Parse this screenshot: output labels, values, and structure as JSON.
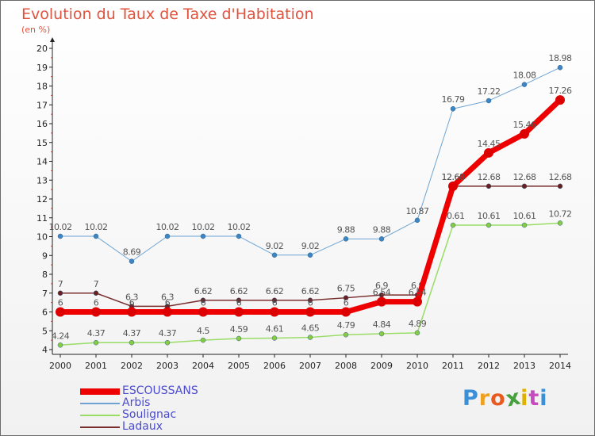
{
  "title": "Evolution du Taux de Taxe d'Habitation",
  "subtitle": "(en %)",
  "chart_data": {
    "type": "line",
    "title": "Evolution du Taux de Taxe d'Habitation",
    "ylabel": "(en %)",
    "ylim": [
      4,
      20
    ],
    "yticks": [
      "4",
      "5",
      "6",
      "7",
      "8",
      "9",
      "10",
      "11",
      "12",
      "13",
      "14",
      "15",
      "16",
      "17",
      "18",
      "19",
      "20"
    ],
    "categories": [
      "2000",
      "2001",
      "2002",
      "2003",
      "2004",
      "2005",
      "2006",
      "2007",
      "2008",
      "2009",
      "2010",
      "2011",
      "2012",
      "2013",
      "2014"
    ],
    "series": [
      {
        "name": "Arbis",
        "color": "#6da4d4",
        "point": "#3d86c6",
        "width": 1,
        "values": [
          10.02,
          10.02,
          8.69,
          10.02,
          10.02,
          10.02,
          9.02,
          9.02,
          9.88,
          9.88,
          10.87,
          16.79,
          17.22,
          18.08,
          18.98
        ],
        "labels": [
          "10.02",
          "10.02",
          "8.69",
          "10.02",
          "10.02",
          "10.02",
          "9.02",
          "9.02",
          "9.88",
          "9.88",
          "10.87",
          "16.79",
          "17.22",
          "18.08",
          "18.98"
        ]
      },
      {
        "name": "Ladaux",
        "color": "#7a2e2e",
        "point": "#6b1f1f",
        "width": 1.5,
        "values": [
          7,
          7,
          6.3,
          6.3,
          6.62,
          6.62,
          6.62,
          6.62,
          6.75,
          6.9,
          6.9,
          12.68,
          12.68,
          12.68,
          12.68
        ],
        "labels": [
          "7",
          "7",
          "6.3",
          "6.3",
          "6.62",
          "6.62",
          "6.62",
          "6.62",
          "6.75",
          "6.9",
          "6.9",
          "12.68",
          "12.68",
          "12.68",
          "12.68"
        ]
      },
      {
        "name": "Soulignac",
        "color": "#99dd66",
        "point": "#88cc44",
        "width": 1.5,
        "values": [
          4.24,
          4.37,
          4.37,
          4.37,
          4.5,
          4.59,
          4.61,
          4.65,
          4.79,
          4.84,
          4.89,
          10.61,
          10.61,
          10.61,
          10.72
        ],
        "labels": [
          "4.24",
          "4.37",
          "4.37",
          "4.37",
          "4.5",
          "4.59",
          "4.61",
          "4.65",
          "4.79",
          "4.84",
          "4.89",
          "10.61",
          "10.61",
          "10.61",
          "10.72"
        ]
      },
      {
        "name": "ESCOUSSANS",
        "color": "#ee0000",
        "point": "#dd0000",
        "width": 7,
        "values": [
          6,
          6,
          6,
          6,
          6,
          6,
          6,
          6,
          6,
          6.54,
          6.54,
          12.68,
          14.45,
          15.46,
          17.26
        ],
        "labels": [
          "6",
          "6",
          "6",
          "6",
          "6",
          "6",
          "6",
          "6",
          "6",
          "6.54",
          "6.54",
          "12.68",
          "14.45",
          "15.46",
          "17.26"
        ]
      }
    ]
  },
  "legend": [
    {
      "name": "ESCOUSSANS",
      "color": "#ee0000",
      "thickness": 8
    },
    {
      "name": "Arbis",
      "color": "#6da4d4",
      "thickness": 2
    },
    {
      "name": "Soulignac",
      "color": "#99dd66",
      "thickness": 2
    },
    {
      "name": "Ladaux",
      "color": "#7a2e2e",
      "thickness": 2
    }
  ],
  "logo": {
    "letters": [
      "P",
      "r",
      "o",
      "x",
      "i",
      "t",
      "i"
    ],
    "colors": [
      "#3a8fd6",
      "#f0a020",
      "#e85a20",
      "#46a03c",
      "#e0b000",
      "#c84ac0",
      "#3a8fd6"
    ]
  }
}
